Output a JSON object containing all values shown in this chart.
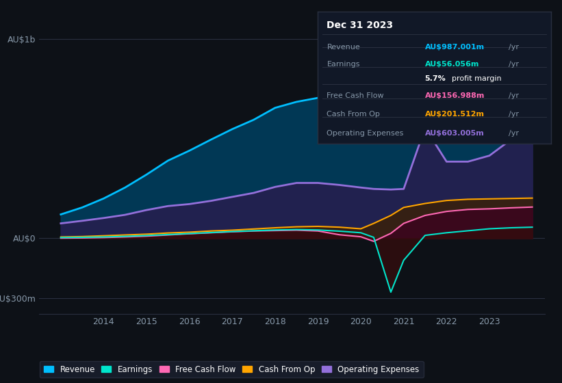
{
  "bg_color": "#0d1117",
  "plot_bg_color": "#0d1117",
  "title": "Dec 31 2023",
  "ytick_labels": [
    "AU$1b",
    "AU$0",
    "-AU$300m"
  ],
  "ylim": [
    -380,
    1100
  ],
  "xlim": [
    2012.5,
    2024.3
  ],
  "xticks": [
    2014,
    2015,
    2016,
    2017,
    2018,
    2019,
    2020,
    2021,
    2022,
    2023
  ],
  "grid_color": "#2a3040",
  "line_colors": {
    "revenue": "#00bfff",
    "earnings": "#00e5cc",
    "free_cash_flow": "#ff69b4",
    "cash_from_op": "#ffa500",
    "operating_expenses": "#9370db"
  },
  "fill_colors": {
    "revenue": "#003d5c",
    "earnings": "#330d0d",
    "free_cash_flow": "#3d0020",
    "cash_from_op": "#3d2000",
    "operating_expenses": "#2d1a4d"
  },
  "years": [
    2013,
    2013.5,
    2014,
    2014.5,
    2015,
    2015.5,
    2016,
    2016.5,
    2017,
    2017.5,
    2018,
    2018.5,
    2019,
    2019.5,
    2020,
    2020.3,
    2020.7,
    2021,
    2021.5,
    2022,
    2022.5,
    2023,
    2023.5,
    2024
  ],
  "revenue": [
    120,
    155,
    200,
    255,
    320,
    390,
    440,
    495,
    548,
    595,
    655,
    685,
    705,
    715,
    720,
    690,
    640,
    630,
    670,
    715,
    770,
    840,
    910,
    987
  ],
  "earnings": [
    4,
    5,
    7,
    10,
    14,
    19,
    24,
    29,
    34,
    38,
    42,
    44,
    42,
    36,
    28,
    5,
    -270,
    -110,
    15,
    28,
    38,
    48,
    53,
    56
  ],
  "free_cash_flow": [
    1,
    2,
    4,
    7,
    11,
    17,
    23,
    28,
    33,
    37,
    39,
    41,
    37,
    18,
    8,
    -15,
    25,
    75,
    115,
    135,
    145,
    148,
    153,
    157
  ],
  "cash_from_op": [
    7,
    9,
    13,
    17,
    21,
    27,
    31,
    37,
    41,
    47,
    53,
    58,
    60,
    56,
    48,
    75,
    115,
    155,
    175,
    190,
    196,
    198,
    200,
    202
  ],
  "operating_expenses": [
    75,
    88,
    102,
    118,
    142,
    162,
    172,
    188,
    208,
    228,
    258,
    278,
    278,
    268,
    255,
    248,
    245,
    248,
    555,
    385,
    385,
    415,
    495,
    603
  ],
  "info_rows": [
    {
      "label": "Revenue",
      "value": "AU$987.001m",
      "color": "#00bfff",
      "suffix": "/yr"
    },
    {
      "label": "Earnings",
      "value": "AU$56.056m",
      "color": "#00e5cc",
      "suffix": "/yr"
    },
    {
      "label": "",
      "value": "5.7% profit margin",
      "color": "#ffffff",
      "suffix": ""
    },
    {
      "label": "Free Cash Flow",
      "value": "AU$156.988m",
      "color": "#ff69b4",
      "suffix": "/yr"
    },
    {
      "label": "Cash From Op",
      "value": "AU$201.512m",
      "color": "#ffa500",
      "suffix": "/yr"
    },
    {
      "label": "Operating Expenses",
      "value": "AU$603.005m",
      "color": "#9370db",
      "suffix": "/yr"
    }
  ],
  "legend": [
    {
      "label": "Revenue",
      "color": "#00bfff"
    },
    {
      "label": "Earnings",
      "color": "#00e5cc"
    },
    {
      "label": "Free Cash Flow",
      "color": "#ff69b4"
    },
    {
      "label": "Cash From Op",
      "color": "#ffa500"
    },
    {
      "label": "Operating Expenses",
      "color": "#9370db"
    }
  ]
}
